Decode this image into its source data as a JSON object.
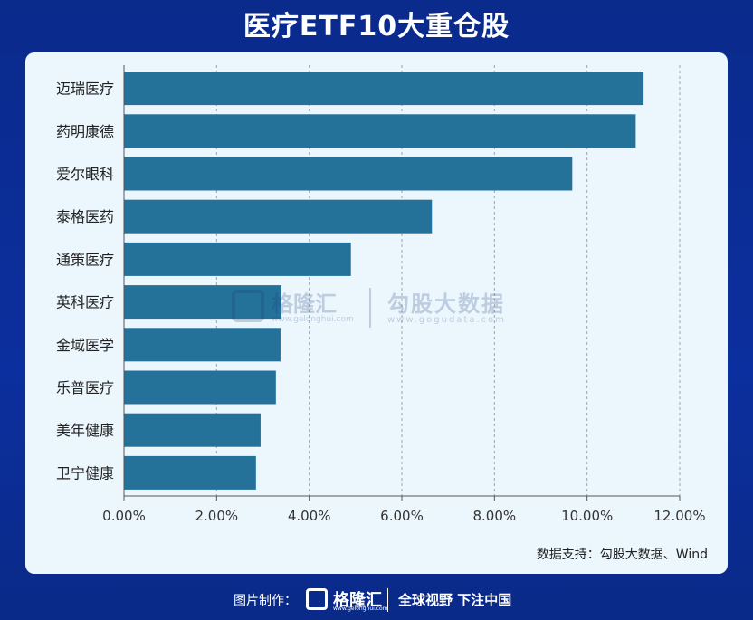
{
  "title": "医疗ETF10大重仓股",
  "source": "数据支持：勾股大数据、Wind",
  "watermark": {
    "brand": "格隆汇",
    "brand_url": "www.gelonghui.com",
    "data_brand": "勾股大数据",
    "data_url": "www.gogudata.com"
  },
  "footer": {
    "label": "图片制作：",
    "brand": "格隆汇",
    "brand_url": "www.gelonghui.com",
    "slogan": "全球视野 下注中国"
  },
  "colors": {
    "bar": "#24719a",
    "background": "#0a2a8c",
    "card": "#ebf6fd"
  },
  "chart_data": {
    "type": "bar",
    "orientation": "horizontal",
    "categories": [
      "迈瑞医疗",
      "药明康德",
      "爱尔眼科",
      "泰格医药",
      "通策医疗",
      "英科医疗",
      "金域医学",
      "乐普医疗",
      "美年健康",
      "卫宁健康"
    ],
    "values": [
      11.22,
      11.05,
      9.68,
      6.65,
      4.9,
      3.4,
      3.38,
      3.28,
      2.95,
      2.85
    ],
    "value_unit": "%",
    "xlim": [
      0,
      12
    ],
    "xticks": [
      "0.00%",
      "2.00%",
      "4.00%",
      "6.00%",
      "8.00%",
      "10.00%",
      "12.00%"
    ],
    "grid": "vertical dashed",
    "title": "医疗ETF10大重仓股"
  }
}
